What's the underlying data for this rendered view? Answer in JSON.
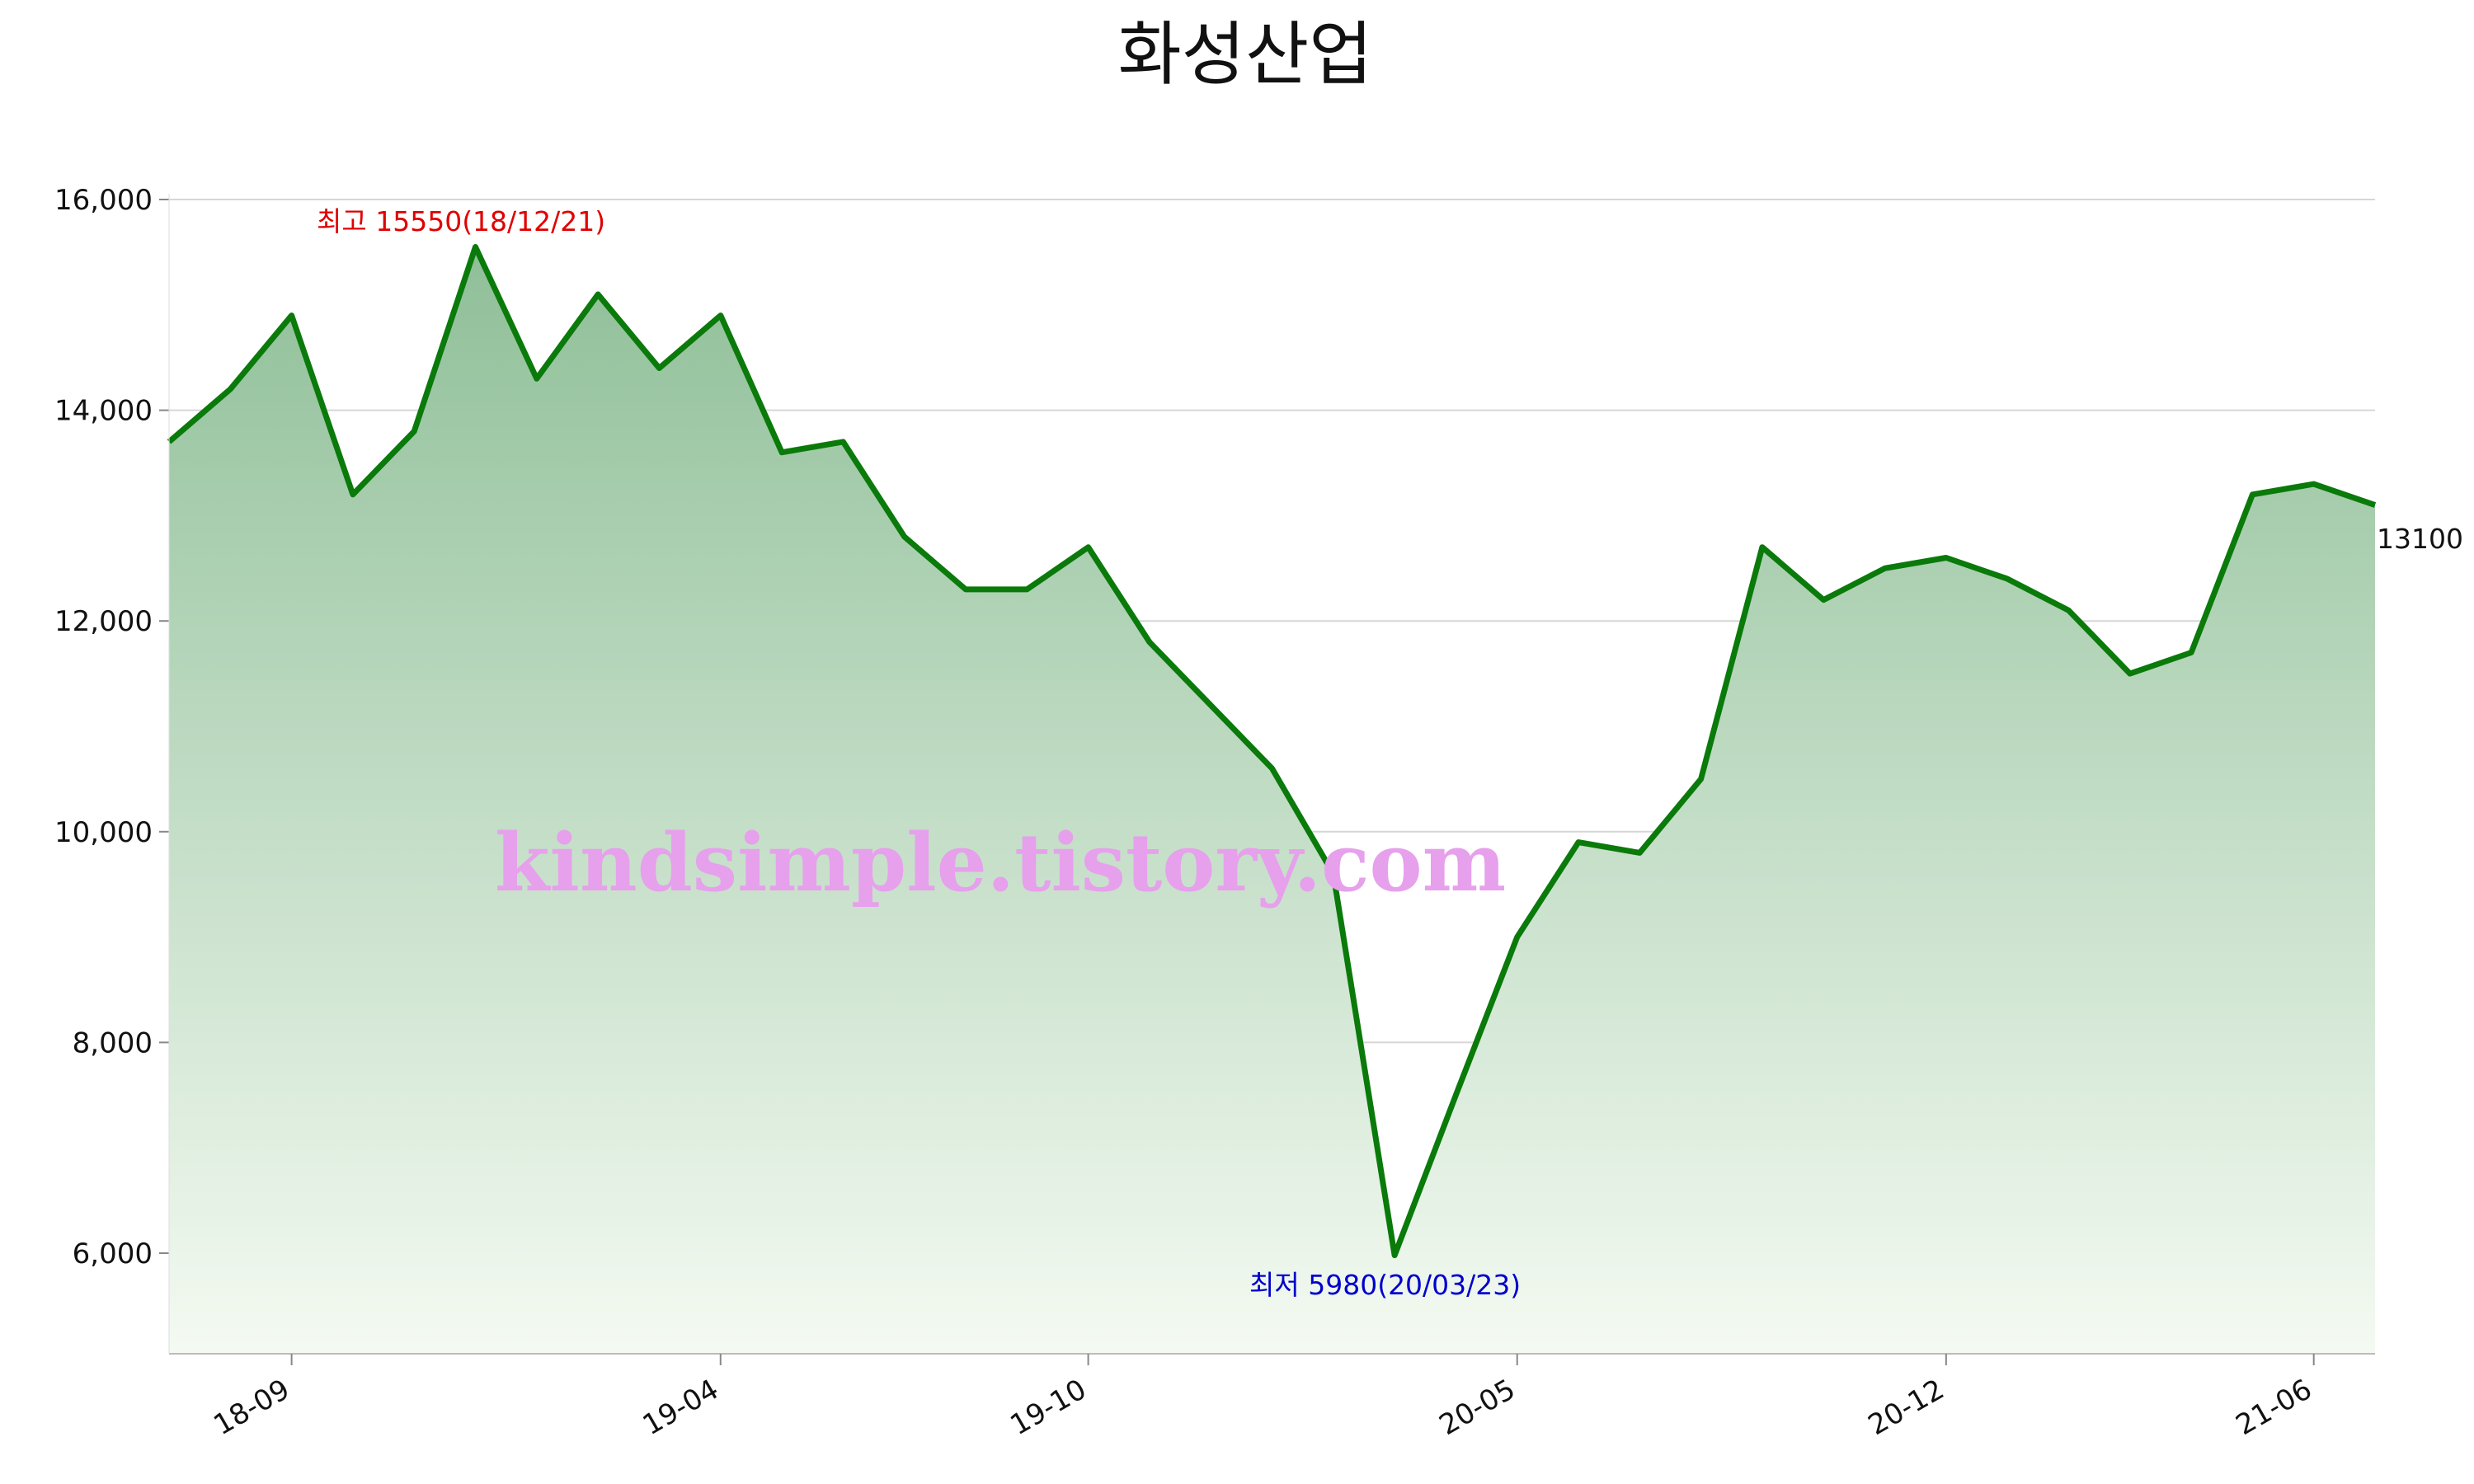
{
  "chart_data": {
    "type": "area",
    "title": "화성산업",
    "xlabel": "",
    "ylabel": "",
    "ylim": [
      5000,
      16000
    ],
    "yticks": [
      6000,
      8000,
      10000,
      12000,
      14000,
      16000
    ],
    "ytick_labels": [
      "6,000",
      "8,000",
      "10,000",
      "12,000",
      "14,000",
      "16,000"
    ],
    "xtick_labels": [
      "18-09",
      "19-04",
      "19-10",
      "20-05",
      "20-12",
      "21-06"
    ],
    "grid": "horizontal",
    "colors": {
      "line": "#0a7a0a",
      "fill_top": "#8fbf98",
      "fill_bottom": "#f4faf2",
      "high": "#e00000",
      "low": "#0000cc"
    },
    "series": [
      {
        "x": [
          "18-07",
          "18-08",
          "18-09",
          "18-10",
          "18-11",
          "18-12",
          "19-01",
          "19-02",
          "19-03",
          "19-04",
          "19-05",
          "19-06",
          "19-07",
          "19-08",
          "19-09",
          "19-10",
          "19-11",
          "19-12",
          "20-01",
          "20-02",
          "20-03",
          "20-04",
          "20-05",
          "20-06",
          "20-07",
          "20-08",
          "20-09",
          "20-10",
          "20-11",
          "20-12",
          "21-01",
          "21-02",
          "21-03",
          "21-04",
          "21-05",
          "21-06",
          "21-07"
        ],
        "values": [
          13700,
          14200,
          14900,
          13200,
          13800,
          15550,
          14300,
          15100,
          14400,
          14900,
          13600,
          13700,
          12800,
          12300,
          12300,
          12700,
          11800,
          11200,
          10600,
          9600,
          5980,
          7500,
          9000,
          9900,
          9800,
          10500,
          12700,
          12200,
          12500,
          12600,
          12400,
          12100,
          11500,
          11700,
          13200,
          13300,
          13100
        ]
      }
    ],
    "annotations": {
      "high": "최고 15550(18/12/21)",
      "low": "최저 5980(20/03/23)",
      "last": "13100"
    },
    "watermark": "kindsimple.tistory.com"
  }
}
